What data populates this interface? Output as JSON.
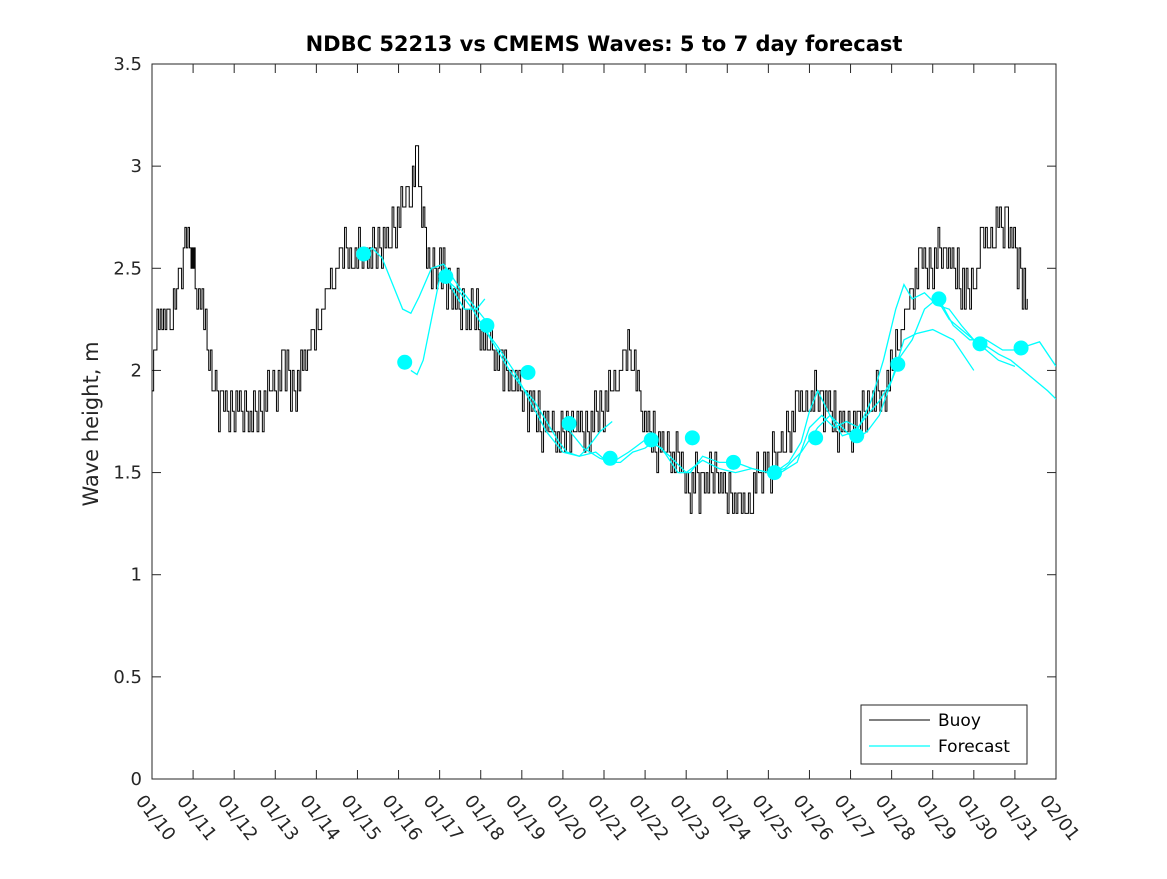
{
  "chart_data": {
    "type": "line",
    "title": "NDBC 52213 vs CMEMS Waves: 5 to 7 day forecast",
    "xlabel": "",
    "ylabel": "Wave height, m",
    "xlim": [
      0,
      22
    ],
    "ylim": [
      0,
      3.5
    ],
    "x_unit": "days since 01/10",
    "x_ticks": [
      0,
      1,
      2,
      3,
      4,
      5,
      6,
      7,
      8,
      9,
      10,
      11,
      12,
      13,
      14,
      15,
      16,
      17,
      18,
      19,
      20,
      21,
      22
    ],
    "x_tick_labels": [
      "01/10",
      "01/11",
      "01/12",
      "01/13",
      "01/14",
      "01/15",
      "01/16",
      "01/17",
      "01/18",
      "01/19",
      "01/20",
      "01/21",
      "01/22",
      "01/23",
      "01/24",
      "01/25",
      "01/26",
      "01/27",
      "01/28",
      "01/29",
      "01/30",
      "01/31",
      "02/01"
    ],
    "y_ticks": [
      0,
      0.5,
      1,
      1.5,
      2,
      2.5,
      3,
      3.5
    ],
    "y_tick_labels": [
      "0",
      "0.5",
      "1",
      "1.5",
      "2",
      "2.5",
      "3",
      "3.5"
    ],
    "grid": false,
    "legend": {
      "location": "bottom-right",
      "entries": [
        "Buoy",
        "Forecast"
      ]
    },
    "colors": {
      "buoy": "#000000",
      "forecast": "#00FFFF",
      "axis": "#262626"
    },
    "series": [
      {
        "name": "Buoy",
        "color": "#000000",
        "x": [
          0,
          0.2,
          0.4,
          0.6,
          0.8,
          0.95,
          1.05,
          1.3,
          1.5,
          1.7,
          2,
          2.3,
          2.6,
          2.9,
          3.2,
          3.5,
          3.7,
          4,
          4.3,
          4.6,
          4.9,
          5.2,
          5.5,
          5.8,
          6.1,
          6.3,
          6.45,
          6.6,
          6.8,
          7,
          7.3,
          7.6,
          7.9,
          8.2,
          8.5,
          8.8,
          9.1,
          9.4,
          9.7,
          10,
          10.3,
          10.6,
          10.9,
          11.2,
          11.5,
          11.7,
          11.9,
          12.2,
          12.5,
          12.8,
          13.1,
          13.4,
          13.7,
          14,
          14.3,
          14.6,
          14.8,
          15.1,
          15.4,
          15.7,
          16,
          16.3,
          16.6,
          16.9,
          17.2,
          17.5,
          17.8,
          18.1,
          18.4,
          18.7,
          19,
          19.3,
          19.6,
          19.9,
          20.2,
          20.5,
          20.8,
          21.1,
          21.3
        ],
        "values": [
          2.0,
          2.3,
          2.2,
          2.4,
          2.6,
          2.6,
          2.4,
          2.2,
          1.9,
          1.8,
          1.8,
          1.8,
          1.75,
          1.9,
          2.0,
          1.9,
          2.05,
          2.2,
          2.4,
          2.55,
          2.6,
          2.55,
          2.6,
          2.65,
          2.8,
          2.9,
          3.05,
          2.7,
          2.45,
          2.5,
          2.4,
          2.3,
          2.25,
          2.1,
          2.0,
          1.95,
          1.85,
          1.75,
          1.7,
          1.65,
          1.75,
          1.7,
          1.8,
          1.9,
          2.05,
          2.1,
          1.8,
          1.65,
          1.6,
          1.55,
          1.45,
          1.45,
          1.5,
          1.4,
          1.3,
          1.4,
          1.5,
          1.55,
          1.65,
          1.8,
          1.9,
          1.85,
          1.75,
          1.7,
          1.75,
          1.85,
          1.9,
          2.1,
          2.3,
          2.5,
          2.55,
          2.6,
          2.45,
          2.35,
          2.6,
          2.7,
          2.75,
          2.5,
          2.35
        ]
      },
      {
        "name": "Forecast",
        "color": "#00FFFF",
        "segments": [
          {
            "x": [
              5.15,
              5.35,
              5.6,
              5.9,
              6.1,
              6.3,
              6.5,
              6.8,
              7.1,
              7.5,
              7.9,
              8.1
            ],
            "values": [
              2.55,
              2.6,
              2.55,
              2.4,
              2.3,
              2.28,
              2.36,
              2.5,
              2.52,
              2.4,
              2.3,
              2.25
            ]
          },
          {
            "x": [
              6.3,
              6.45,
              6.6,
              6.8,
              7.0,
              7.15,
              7.3,
              7.6,
              7.9,
              8.1
            ],
            "values": [
              2.0,
              1.98,
              2.05,
              2.25,
              2.45,
              2.5,
              2.4,
              2.3,
              2.3,
              2.35
            ]
          },
          {
            "x": [
              7.15,
              7.5,
              7.8,
              8.1,
              8.4,
              8.7,
              9.0,
              9.3,
              9.6,
              9.9,
              10.1,
              10.4,
              10.6,
              10.9,
              11.2
            ],
            "values": [
              2.45,
              2.38,
              2.3,
              2.2,
              2.1,
              2.0,
              1.92,
              1.85,
              1.75,
              1.65,
              1.6,
              1.58,
              1.62,
              1.7,
              1.75
            ]
          },
          {
            "x": [
              8.1,
              8.4,
              8.8,
              9.2,
              9.6,
              10.0,
              10.4,
              10.8,
              11.1,
              11.4,
              11.7,
              12.0,
              12.2
            ],
            "values": [
              2.2,
              2.12,
              2.0,
              1.85,
              1.7,
              1.6,
              1.58,
              1.6,
              1.55,
              1.55,
              1.6,
              1.62,
              1.65
            ]
          },
          {
            "x": [
              10.1,
              10.5,
              10.9,
              11.2,
              11.6,
              12.0,
              12.4,
              12.8,
              13.1,
              13.4,
              13.8,
              14.2
            ],
            "values": [
              1.72,
              1.62,
              1.57,
              1.55,
              1.6,
              1.66,
              1.62,
              1.5,
              1.5,
              1.58,
              1.55,
              1.55
            ]
          },
          {
            "x": [
              12.2,
              12.6,
              13.0,
              13.4,
              13.8,
              14.2,
              14.6,
              15.0,
              15.3,
              15.7,
              16.0,
              16.3,
              16.6,
              16.9,
              17.2
            ],
            "values": [
              1.65,
              1.58,
              1.5,
              1.56,
              1.52,
              1.5,
              1.52,
              1.5,
              1.5,
              1.55,
              1.72,
              1.78,
              1.72,
              1.75,
              1.72
            ]
          },
          {
            "x": [
              14.2,
              14.6,
              15.0,
              15.4,
              15.8,
              16.2,
              16.5,
              16.8,
              17.1,
              17.4,
              17.7,
              18.0,
              18.1
            ],
            "values": [
              1.55,
              1.52,
              1.5,
              1.52,
              1.6,
              1.72,
              1.78,
              1.72,
              1.66,
              1.7,
              1.78,
              1.95,
              2.0
            ]
          },
          {
            "x": [
              15.15,
              15.5,
              15.8,
              16.0,
              16.2,
              16.5,
              16.8,
              17.1,
              17.4,
              17.7,
              18.0,
              18.3,
              18.6,
              19.0,
              19.5,
              20.0
            ],
            "values": [
              1.5,
              1.55,
              1.65,
              1.8,
              1.9,
              1.78,
              1.68,
              1.7,
              1.78,
              1.85,
              1.95,
              2.15,
              2.18,
              2.2,
              2.15,
              2.0
            ]
          },
          {
            "x": [
              17.15,
              17.5,
              17.8,
              18.1,
              18.3,
              18.5,
              18.8,
              19.1,
              19.4,
              19.7,
              20.0,
              20.3,
              20.6,
              21.0
            ],
            "values": [
              1.7,
              1.85,
              2.05,
              2.3,
              2.42,
              2.35,
              2.38,
              2.32,
              2.3,
              2.22,
              2.15,
              2.1,
              2.05,
              2.02
            ]
          },
          {
            "x": [
              18.15,
              18.5,
              18.8,
              19.1,
              19.4,
              19.7,
              20.0,
              20.3,
              20.6,
              20.9,
              21.2,
              21.5,
              21.8,
              22.0
            ],
            "values": [
              2.05,
              2.15,
              2.3,
              2.35,
              2.25,
              2.2,
              2.15,
              2.12,
              2.08,
              2.05,
              2.0,
              1.95,
              1.9,
              1.86
            ]
          },
          {
            "x": [
              19.15,
              19.5,
              19.9,
              20.3,
              20.7,
              21.0,
              21.3,
              21.6,
              22.0
            ],
            "values": [
              2.35,
              2.22,
              2.15,
              2.15,
              2.1,
              2.1,
              2.12,
              2.14,
              2.02
            ]
          }
        ]
      },
      {
        "name": "Forecast markers",
        "color": "#00FFFF",
        "marker": "filled-circle",
        "x": [
          5.15,
          6.15,
          7.15,
          8.15,
          9.15,
          10.15,
          11.15,
          12.15,
          13.15,
          14.15,
          15.15,
          16.15,
          17.15,
          18.15,
          19.15,
          20.15,
          21.15
        ],
        "values": [
          2.57,
          2.04,
          2.46,
          2.22,
          1.99,
          1.74,
          1.57,
          1.66,
          1.67,
          1.55,
          1.5,
          1.67,
          1.68,
          2.03,
          2.35,
          2.13,
          2.11
        ]
      }
    ]
  }
}
